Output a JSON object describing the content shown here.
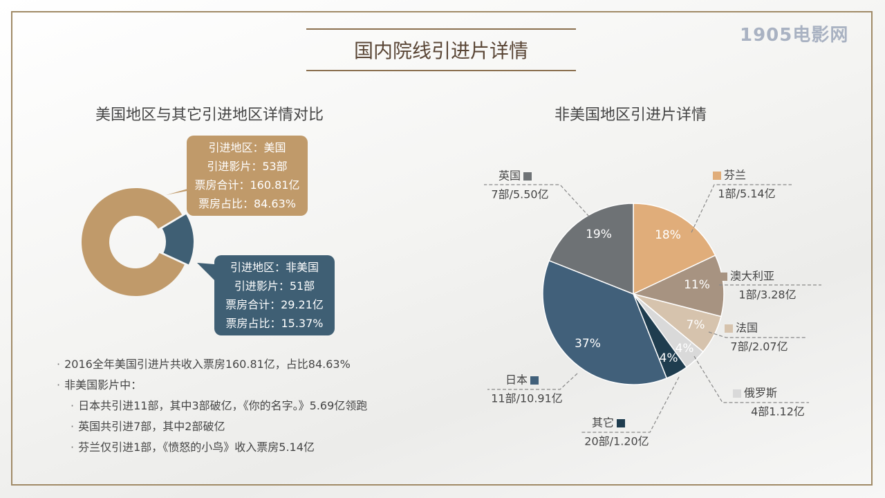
{
  "watermark": "1905电影网",
  "page_title": "国内院线引进片详情",
  "left_title": "美国地区与其它引进地区详情对比",
  "right_title": "非美国地区引进片详情",
  "bubble_us": [
    "引进地区：美国",
    "引进影片：53部",
    "票房合计：160.81亿",
    "票房占比：84.63%"
  ],
  "bubble_non_us": [
    "引进地区：非美国",
    "引进影片：51部",
    "票房合计：29.21亿",
    "票房占比：15.37%"
  ],
  "notes": [
    {
      "text": "2016全年美国引进片共收入票房160.81亿，占比84.63%",
      "level": 0
    },
    {
      "text": "非美国影片中：",
      "level": 0
    },
    {
      "text": "日本共引进11部，其中3部破亿，《你的名字。》5.69亿领跑",
      "level": 1
    },
    {
      "text": "英国共引进7部，其中2部破亿",
      "level": 1
    },
    {
      "text": "芬兰仅引进1部，《愤怒的小鸟》收入票房5.14亿",
      "level": 1
    }
  ],
  "colors": {
    "us": "#c09a6a",
    "non_us": "#3f5f74",
    "frame": "#a08a66",
    "title_rule": "#8a6f4e"
  },
  "chart_data": [
    {
      "type": "pie",
      "variant": "donut",
      "categories": [
        "美国",
        "非美国"
      ],
      "values": [
        84.63,
        15.37
      ],
      "films": [
        53,
        51
      ],
      "box_office": [
        160.81,
        29.21
      ],
      "colors": [
        "#c09a6a",
        "#3f5f74"
      ]
    },
    {
      "type": "pie",
      "categories": [
        "芬兰",
        "澳大利亚",
        "法国",
        "俄罗斯",
        "其它",
        "日本",
        "英国"
      ],
      "values": [
        18,
        11,
        7,
        4,
        4,
        37,
        19
      ],
      "labels": [
        "1部/5.14亿",
        "1部/3.28亿",
        "7部/2.07亿",
        "4部1.12亿",
        "20部/1.20亿",
        "11部/10.91亿",
        "7部/5.50亿"
      ],
      "percent_labels": [
        "18%",
        "11%",
        "7%",
        "4%",
        "4%",
        "37%",
        "19%"
      ],
      "colors": [
        "#e0ad7a",
        "#a79381",
        "#d6c3ad",
        "#d9d9d9",
        "#1f3d4f",
        "#41607a",
        "#6e7275"
      ]
    }
  ]
}
